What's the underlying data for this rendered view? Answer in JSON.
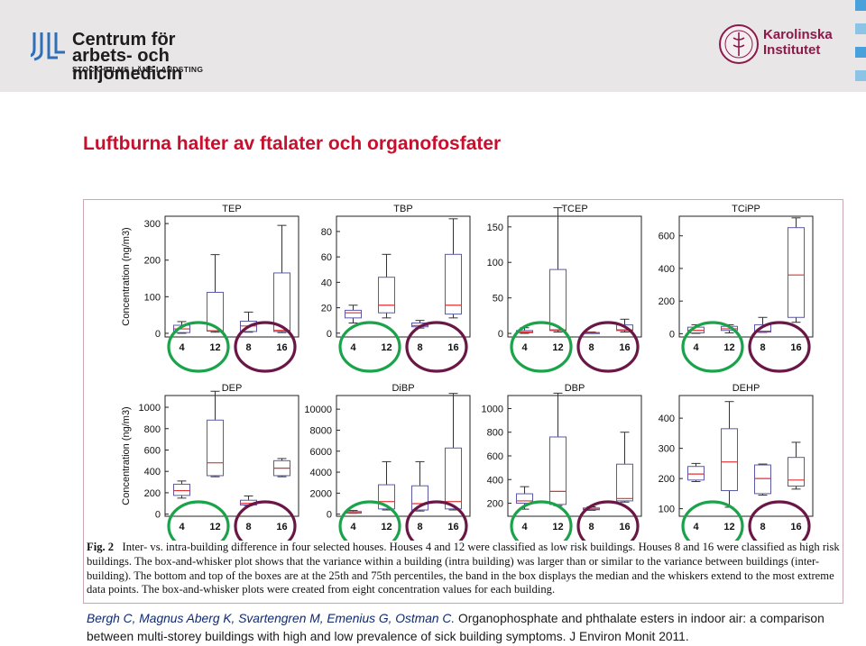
{
  "header": {
    "left_logo": {
      "line1": "Centrum för",
      "line2": "arbets- och miljömedicin",
      "line3": "STOCKHOLMS LÄNS LANDSTING",
      "icon": "jll-logo-icon"
    },
    "right_logo": {
      "line1": "Karolinska",
      "line2": "Institutet",
      "icon": "karolinska-seal-icon"
    }
  },
  "slide": {
    "title": "Luftburna halter av ftalater och  organofosfater"
  },
  "figure": {
    "caption_label": "Fig. 2",
    "caption_text": "Inter- vs. intra-building difference in four selected houses. Houses 4 and 12 were classified as low risk buildings. Houses 8 and 16 were classified as high risk buildings. The box-and-whisker plot shows that the variance within a building (intra building) was larger than or similar to the variance between buildings (inter-building). The bottom and top of the boxes are at the 25th and 75th percentiles, the band in the box displays the median and the whiskers extend to the most extreme data points. The box-and-whisker plots were created from eight concentration values for each building."
  },
  "reference": {
    "authors": "Bergh C, Magnus Aberg K, Svartengren M, Emenius G, Ostman C.",
    "text": "Organophosphate and phthalate esters in indoor air: a comparison between multi-storey buildings with high and low prevalence of sick building symptoms. J Environ Monit 2011."
  },
  "colors": {
    "title": "#c8102e",
    "box": "#5a5aa8",
    "median": "#e23030",
    "low_risk_circle": "#1aa34a",
    "high_risk_circle": "#6a1745"
  },
  "chart_data": [
    {
      "type": "box",
      "title": "TEP",
      "ylabel": "Concentration (ng/m3)",
      "categories": [
        "4",
        "12",
        "8",
        "16"
      ],
      "yticks": [
        0,
        100,
        200,
        300
      ],
      "ylim": [
        -10,
        320
      ],
      "boxes": [
        {
          "min": 0,
          "q1": 2,
          "median": 12,
          "q3": 22,
          "max": 32
        },
        {
          "min": 3,
          "q1": 6,
          "median": 7,
          "q3": 112,
          "max": 215
        },
        {
          "min": 3,
          "q1": 5,
          "median": 20,
          "q3": 33,
          "max": 58
        },
        {
          "min": 2,
          "q1": 5,
          "median": 8,
          "q3": 165,
          "max": 295
        }
      ]
    },
    {
      "type": "box",
      "title": "TBP",
      "ylabel": "",
      "categories": [
        "4",
        "12",
        "8",
        "16"
      ],
      "yticks": [
        0,
        20,
        40,
        60,
        80
      ],
      "ylim": [
        -3,
        92
      ],
      "boxes": [
        {
          "min": 8,
          "q1": 12,
          "median": 16,
          "q3": 18,
          "max": 22
        },
        {
          "min": 12,
          "q1": 16,
          "median": 22,
          "q3": 44,
          "max": 62
        },
        {
          "min": 4,
          "q1": 5,
          "median": 6,
          "q3": 8,
          "max": 10
        },
        {
          "min": 12,
          "q1": 15,
          "median": 22,
          "q3": 62,
          "max": 90
        }
      ]
    },
    {
      "type": "box",
      "title": "TCEP",
      "ylabel": "",
      "categories": [
        "4",
        "12",
        "8",
        "16"
      ],
      "yticks": [
        0,
        50,
        100,
        150
      ],
      "ylim": [
        -5,
        165
      ],
      "boxes": [
        {
          "min": 0,
          "q1": 1,
          "median": 2,
          "q3": 4,
          "max": 8
        },
        {
          "min": 2,
          "q1": 4,
          "median": 5,
          "q3": 90,
          "max": 177
        },
        {
          "min": 1,
          "q1": 1,
          "median": 1,
          "q3": 1,
          "max": 2
        },
        {
          "min": 2,
          "q1": 4,
          "median": 5,
          "q3": 12,
          "max": 20
        }
      ]
    },
    {
      "type": "box",
      "title": "TCiPP",
      "ylabel": "",
      "categories": [
        "4",
        "12",
        "8",
        "16"
      ],
      "yticks": [
        0,
        200,
        400,
        600
      ],
      "ylim": [
        -20,
        720
      ],
      "boxes": [
        {
          "min": 2,
          "q1": 5,
          "median": 20,
          "q3": 40,
          "max": 55
        },
        {
          "min": 5,
          "q1": 20,
          "median": 30,
          "q3": 45,
          "max": 55
        },
        {
          "min": 8,
          "q1": 10,
          "median": 15,
          "q3": 55,
          "max": 100
        },
        {
          "min": 70,
          "q1": 100,
          "median": 360,
          "q3": 650,
          "max": 710
        }
      ]
    },
    {
      "type": "box",
      "title": "DEP",
      "ylabel": "Concentration (ng/m3)",
      "categories": [
        "4",
        "12",
        "8",
        "16"
      ],
      "yticks": [
        0,
        200,
        400,
        600,
        800,
        1000
      ],
      "ylim": [
        -20,
        1110
      ],
      "boxes": [
        {
          "min": 150,
          "q1": 175,
          "median": 220,
          "q3": 280,
          "max": 310
        },
        {
          "min": 350,
          "q1": 360,
          "median": 480,
          "q3": 880,
          "max": 1150
        },
        {
          "min": 80,
          "q1": 85,
          "median": 100,
          "q3": 130,
          "max": 170
        },
        {
          "min": 350,
          "q1": 360,
          "median": 430,
          "q3": 500,
          "max": 520
        }
      ]
    },
    {
      "type": "box",
      "title": "DiBP",
      "ylabel": "",
      "categories": [
        "4",
        "12",
        "8",
        "16"
      ],
      "yticks": [
        0,
        2000,
        4000,
        6000,
        8000,
        10000
      ],
      "ylim": [
        -200,
        11300
      ],
      "boxes": [
        {
          "min": 80,
          "q1": 100,
          "median": 150,
          "q3": 250,
          "max": 350
        },
        {
          "min": 400,
          "q1": 500,
          "median": 1200,
          "q3": 2800,
          "max": 5000
        },
        {
          "min": 300,
          "q1": 400,
          "median": 1000,
          "q3": 2700,
          "max": 5000
        },
        {
          "min": 400,
          "q1": 500,
          "median": 1200,
          "q3": 6300,
          "max": 11500
        }
      ]
    },
    {
      "type": "box",
      "title": "DBP",
      "ylabel": "",
      "categories": [
        "4",
        "12",
        "8",
        "16"
      ],
      "yticks": [
        200,
        400,
        600,
        800,
        1000
      ],
      "ylim": [
        90,
        1110
      ],
      "boxes": [
        {
          "min": 150,
          "q1": 200,
          "median": 220,
          "q3": 280,
          "max": 340
        },
        {
          "min": 180,
          "q1": 190,
          "median": 300,
          "q3": 760,
          "max": 1130
        },
        {
          "min": 140,
          "q1": 145,
          "median": 150,
          "q3": 160,
          "max": 170
        },
        {
          "min": 210,
          "q1": 220,
          "median": 240,
          "q3": 530,
          "max": 800
        }
      ]
    },
    {
      "type": "box",
      "title": "DEHP",
      "ylabel": "",
      "categories": [
        "4",
        "12",
        "8",
        "16"
      ],
      "yticks": [
        100,
        200,
        300,
        400
      ],
      "ylim": [
        75,
        475
      ],
      "boxes": [
        {
          "min": 190,
          "q1": 195,
          "median": 215,
          "q3": 240,
          "max": 250
        },
        {
          "min": 105,
          "q1": 160,
          "median": 255,
          "q3": 365,
          "max": 455
        },
        {
          "min": 145,
          "q1": 150,
          "median": 200,
          "q3": 245,
          "max": 248
        },
        {
          "min": 165,
          "q1": 175,
          "median": 195,
          "q3": 270,
          "max": 320
        }
      ]
    }
  ]
}
